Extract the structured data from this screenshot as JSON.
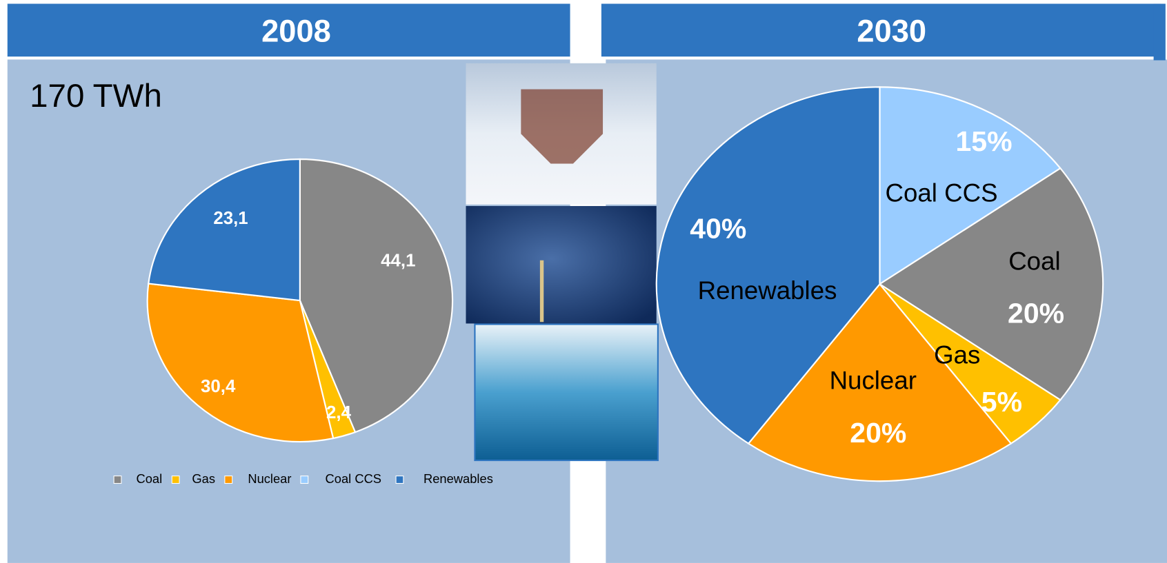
{
  "chart_data": [
    {
      "type": "pie",
      "title": "2008",
      "subtitle": "170 TWh",
      "categories": [
        "Coal",
        "Gas",
        "Nuclear",
        "Coal CCS",
        "Renewables"
      ],
      "values": [
        44.1,
        2.4,
        30.4,
        0,
        23.1
      ],
      "value_labels": [
        "44,1",
        "2,4",
        "30,4",
        null,
        "23,1"
      ],
      "colors": [
        "#878787",
        "#ffc000",
        "#ff9900",
        "#99ccff",
        "#2e75c0"
      ],
      "legend": "bottom"
    },
    {
      "type": "pie",
      "title": "2030",
      "categories": [
        "Coal CCS",
        "Coal",
        "Gas",
        "Nuclear",
        "Renewables"
      ],
      "values": [
        15,
        20,
        5,
        20,
        40
      ],
      "value_labels": [
        "15%",
        "20%",
        "5%",
        "20%",
        "40%"
      ],
      "colors": [
        "#99ccff",
        "#878787",
        "#ffc000",
        "#ff9900",
        "#2e75c0"
      ]
    }
  ]
}
